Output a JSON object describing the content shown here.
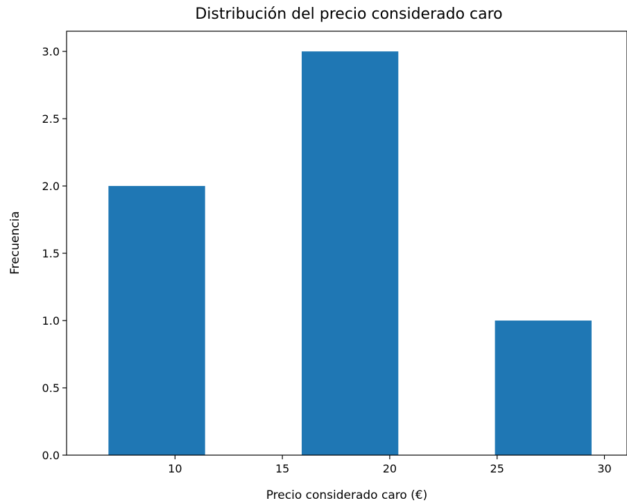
{
  "chart_data": {
    "type": "bar",
    "title": "Distribución del precio considerado caro",
    "xlabel": "Precio considerado caro (€)",
    "ylabel": "Frecuencia",
    "bars": [
      {
        "x_start": 6.9,
        "x_end": 11.4,
        "value": 2
      },
      {
        "x_start": 15.9,
        "x_end": 20.4,
        "value": 3
      },
      {
        "x_start": 24.9,
        "x_end": 29.4,
        "value": 1
      }
    ],
    "xlim": [
      4.95,
      31.05
    ],
    "ylim": [
      0,
      3.15
    ],
    "xticks": [
      10,
      15,
      20,
      25,
      30
    ],
    "xtick_labels": [
      "10",
      "15",
      "20",
      "25",
      "30"
    ],
    "yticks": [
      0,
      0.5,
      1.0,
      1.5,
      2.0,
      2.5,
      3.0
    ],
    "ytick_labels": [
      "0.0",
      "0.5",
      "1.0",
      "1.5",
      "2.0",
      "2.5",
      "3.0"
    ],
    "bar_color": "#1f77b4",
    "grid": false,
    "legend": "none"
  }
}
